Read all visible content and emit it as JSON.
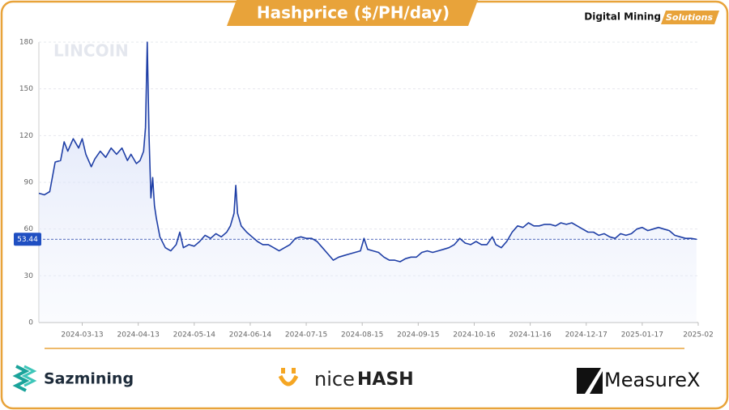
{
  "chart_data": {
    "type": "line",
    "title": "Hashprice ($/PH/day)",
    "brand": "Digital Mining",
    "brand_tag": "Solutions",
    "watermark": "LINCOIN",
    "sponsors": [
      "Sazmining",
      "nice",
      "HASH",
      "MeasureX"
    ],
    "color": "#1f3fa6",
    "current_value": 53.44,
    "xlim": [
      "2024-02-18",
      "2025-02-17"
    ],
    "xticks": [
      "2024-03-13",
      "2024-04-13",
      "2024-05-14",
      "2024-06-14",
      "2024-07-15",
      "2024-08-15",
      "2024-09-15",
      "2024-10-16",
      "2024-11-16",
      "2024-12-17",
      "2025-01-17",
      {
        "value": "2025-02-17",
        "label": "2025-02"
      }
    ],
    "ylim": [
      0,
      180
    ],
    "yticks": [
      0,
      30,
      60,
      90,
      120,
      150,
      180
    ],
    "grid": true,
    "x": [
      "2024-02-18",
      "2024-02-21",
      "2024-02-24",
      "2024-02-27",
      "2024-03-01",
      "2024-03-03",
      "2024-03-05",
      "2024-03-08",
      "2024-03-11",
      "2024-03-13",
      "2024-03-15",
      "2024-03-18",
      "2024-03-20",
      "2024-03-23",
      "2024-03-26",
      "2024-03-29",
      "2024-04-01",
      "2024-04-04",
      "2024-04-07",
      "2024-04-09",
      "2024-04-12",
      "2024-04-14",
      "2024-04-16",
      "2024-04-17",
      "2024-04-18",
      "2024-04-19",
      "2024-04-20",
      "2024-04-21",
      "2024-04-22",
      "2024-04-23",
      "2024-04-25",
      "2024-04-28",
      "2024-05-01",
      "2024-05-04",
      "2024-05-06",
      "2024-05-08",
      "2024-05-11",
      "2024-05-14",
      "2024-05-17",
      "2024-05-20",
      "2024-05-23",
      "2024-05-26",
      "2024-05-29",
      "2024-06-01",
      "2024-06-03",
      "2024-06-05",
      "2024-06-06",
      "2024-06-07",
      "2024-06-09",
      "2024-06-12",
      "2024-06-15",
      "2024-06-18",
      "2024-06-21",
      "2024-06-24",
      "2024-06-27",
      "2024-06-30",
      "2024-07-03",
      "2024-07-06",
      "2024-07-09",
      "2024-07-12",
      "2024-07-15",
      "2024-07-18",
      "2024-07-21",
      "2024-07-24",
      "2024-07-27",
      "2024-07-30",
      "2024-08-02",
      "2024-08-05",
      "2024-08-08",
      "2024-08-11",
      "2024-08-14",
      "2024-08-16",
      "2024-08-18",
      "2024-08-21",
      "2024-08-24",
      "2024-08-27",
      "2024-08-30",
      "2024-09-02",
      "2024-09-05",
      "2024-09-08",
      "2024-09-11",
      "2024-09-14",
      "2024-09-17",
      "2024-09-20",
      "2024-09-23",
      "2024-09-26",
      "2024-09-29",
      "2024-10-02",
      "2024-10-05",
      "2024-10-08",
      "2024-10-11",
      "2024-10-14",
      "2024-10-17",
      "2024-10-20",
      "2024-10-23",
      "2024-10-26",
      "2024-10-28",
      "2024-10-31",
      "2024-11-03",
      "2024-11-06",
      "2024-11-09",
      "2024-11-12",
      "2024-11-15",
      "2024-11-18",
      "2024-11-21",
      "2024-11-24",
      "2024-11-27",
      "2024-11-30",
      "2024-12-03",
      "2024-12-06",
      "2024-12-09",
      "2024-12-12",
      "2024-12-15",
      "2024-12-18",
      "2024-12-21",
      "2024-12-24",
      "2024-12-27",
      "2024-12-30",
      "2025-01-02",
      "2025-01-05",
      "2025-01-08",
      "2025-01-11",
      "2025-01-14",
      "2025-01-17",
      "2025-01-20",
      "2025-01-23",
      "2025-01-26",
      "2025-01-29",
      "2025-02-01",
      "2025-02-04",
      "2025-02-07",
      "2025-02-10",
      "2025-02-13",
      "2025-02-16"
    ],
    "values": [
      83,
      82,
      84,
      103,
      104,
      116,
      110,
      118,
      112,
      118,
      108,
      100,
      105,
      110,
      106,
      112,
      108,
      112,
      104,
      108,
      102,
      104,
      110,
      125,
      180,
      120,
      80,
      93,
      75,
      67,
      55,
      48,
      46,
      50,
      58,
      48,
      50,
      49,
      52,
      56,
      54,
      57,
      55,
      58,
      62,
      70,
      88,
      70,
      62,
      58,
      55,
      52,
      50,
      50,
      48,
      46,
      48,
      50,
      54,
      55,
      54,
      54,
      52,
      48,
      44,
      40,
      42,
      43,
      44,
      45,
      46,
      54,
      47,
      46,
      45,
      42,
      40,
      40,
      39,
      41,
      42,
      42,
      45,
      46,
      45,
      46,
      47,
      48,
      50,
      54,
      51,
      50,
      52,
      50,
      50,
      55,
      50,
      48,
      52,
      58,
      62,
      61,
      64,
      62,
      62,
      63,
      63,
      62,
      64,
      63,
      64,
      62,
      60,
      58,
      58,
      56,
      57,
      55,
      54,
      57,
      56,
      57,
      60,
      61,
      59,
      60,
      61,
      60,
      59,
      56,
      55,
      54,
      54,
      53.44
    ]
  }
}
